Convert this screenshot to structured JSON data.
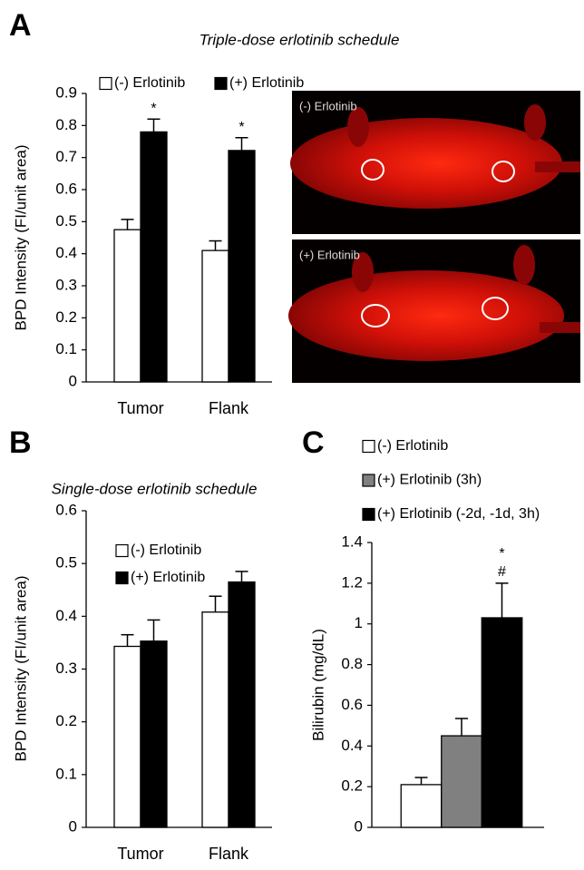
{
  "chart_data": [
    {
      "type": "bar",
      "panel": "A",
      "title": "Triple-dose erlotinib schedule",
      "y_label": "BPD Intensity (FI/unit area)",
      "categories": [
        "Tumor",
        "Flank"
      ],
      "series": [
        {
          "name": "(-) Erlotinib",
          "color": "#ffffff",
          "values": [
            0.475,
            0.41
          ],
          "errors": [
            0.032,
            0.03
          ]
        },
        {
          "name": "(+) Erlotinib",
          "color": "#000000",
          "values": [
            0.78,
            0.722
          ],
          "errors": [
            0.04,
            0.04
          ],
          "markers": [
            "*",
            "*"
          ]
        }
      ],
      "ylim": [
        0,
        0.9
      ],
      "yticks": [
        0,
        0.1,
        0.2,
        0.3,
        0.4,
        0.5,
        0.6,
        0.7,
        0.8,
        0.9
      ],
      "legend": "top"
    },
    {
      "type": "bar",
      "panel": "B",
      "title": "Single-dose erlotinib schedule",
      "y_label": "BPD Intensity (FI/unit area)",
      "categories": [
        "Tumor",
        "Flank"
      ],
      "series": [
        {
          "name": "(-) Erlotinib",
          "color": "#ffffff",
          "values": [
            0.343,
            0.408
          ],
          "errors": [
            0.022,
            0.03
          ]
        },
        {
          "name": "(+) Erlotinib",
          "color": "#000000",
          "values": [
            0.353,
            0.465
          ],
          "errors": [
            0.04,
            0.02
          ]
        }
      ],
      "ylim": [
        0,
        0.6
      ],
      "yticks": [
        0,
        0.1,
        0.2,
        0.3,
        0.4,
        0.5,
        0.6
      ],
      "legend": "upper left"
    },
    {
      "type": "bar",
      "panel": "C",
      "y_label": "Bilirubin (mg/dL)",
      "categories": [
        null
      ],
      "series": [
        {
          "name": "(-) Erlotinib",
          "color": "#ffffff",
          "values": [
            0.21
          ],
          "errors": [
            0.035
          ]
        },
        {
          "name": "(+) Erlotinib (3h)",
          "color": "#808080",
          "values": [
            0.45
          ],
          "errors": [
            0.085
          ]
        },
        {
          "name": "(+) Erlotinib (-2d, -1d, 3h)",
          "color": "#000000",
          "values": [
            1.03
          ],
          "errors": [
            0.17
          ],
          "markers": [
            "*",
            "#"
          ]
        }
      ],
      "ylim": [
        0,
        1.4
      ],
      "yticks": [
        0,
        0.2,
        0.4,
        0.6,
        0.8,
        1,
        1.2,
        1.4
      ],
      "legend": "top"
    }
  ],
  "images": [
    {
      "label": "(-) Erlotinib"
    },
    {
      "label": "(+) Erlotinib"
    }
  ]
}
